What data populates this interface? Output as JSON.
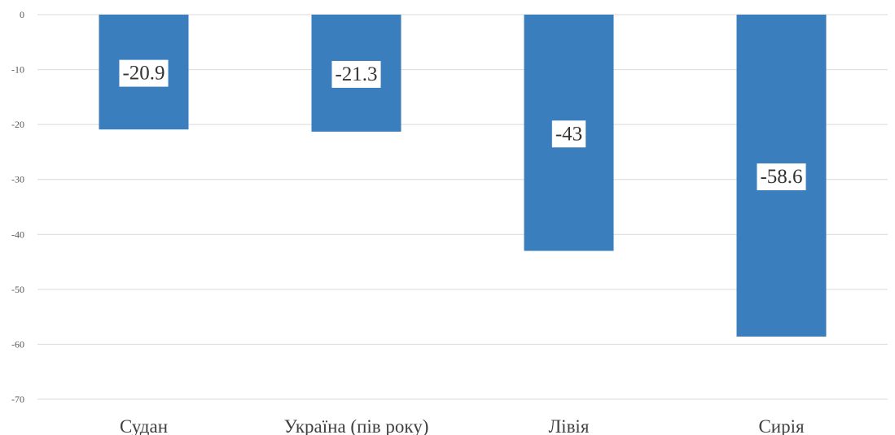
{
  "chart_data": {
    "type": "bar",
    "title": "",
    "xlabel": "",
    "ylabel": "",
    "categories": [
      "Судан",
      "Україна (пів року)",
      "Лівія",
      "Сирія"
    ],
    "values": [
      -20.9,
      -21.3,
      -43,
      -58.6
    ],
    "data_labels": [
      "-20.9",
      "-21.3",
      "-43",
      "-58.6"
    ],
    "ylim": [
      -70,
      0
    ],
    "y_ticks": [
      0,
      -10,
      -20,
      -30,
      -40,
      -50,
      -60,
      -70
    ],
    "grid": true,
    "legend": "none",
    "bar_color": "#3a7ebd"
  }
}
